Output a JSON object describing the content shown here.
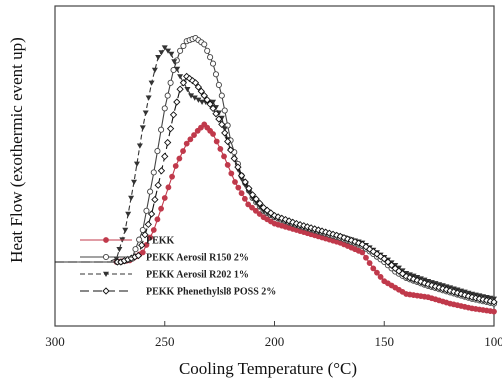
{
  "chart_data": {
    "type": "line",
    "xlabel": "Cooling Temperature (°C)",
    "ylabel": "Heat Flow (exothermic event up)",
    "xlim": [
      300,
      100
    ],
    "x_reversed": true,
    "x_ticks": [
      300,
      250,
      200,
      150,
      100
    ],
    "x_tick_labels": [
      "300",
      "250",
      "200",
      "150",
      "100"
    ],
    "y_ticks_shown": false,
    "grid": false,
    "legend_position": "bottom-left",
    "series": [
      {
        "name": "PEKK",
        "color": "#c0394b",
        "marker": "filled-circle",
        "line": "solid",
        "points": [
          [
            300,
            0.2
          ],
          [
            280,
            0.2
          ],
          [
            272,
            0.2
          ],
          [
            266,
            0.205
          ],
          [
            260,
            0.23
          ],
          [
            255,
            0.3
          ],
          [
            250,
            0.4
          ],
          [
            245,
            0.5
          ],
          [
            240,
            0.57
          ],
          [
            235,
            0.61
          ],
          [
            232,
            0.63
          ],
          [
            228,
            0.6
          ],
          [
            223,
            0.53
          ],
          [
            218,
            0.45
          ],
          [
            212,
            0.38
          ],
          [
            205,
            0.34
          ],
          [
            200,
            0.32
          ],
          [
            190,
            0.3
          ],
          [
            180,
            0.28
          ],
          [
            170,
            0.26
          ],
          [
            160,
            0.23
          ],
          [
            155,
            0.18
          ],
          [
            150,
            0.14
          ],
          [
            145,
            0.12
          ],
          [
            140,
            0.1
          ],
          [
            130,
            0.09
          ],
          [
            120,
            0.07
          ],
          [
            110,
            0.055
          ],
          [
            100,
            0.045
          ]
        ]
      },
      {
        "name": "PEKK Aerosil R150 2%",
        "color": "#444444",
        "marker": "open-circle",
        "line": "solid",
        "points": [
          [
            300,
            0.2
          ],
          [
            280,
            0.2
          ],
          [
            270,
            0.2
          ],
          [
            265,
            0.21
          ],
          [
            260,
            0.3
          ],
          [
            255,
            0.48
          ],
          [
            250,
            0.68
          ],
          [
            246,
            0.8
          ],
          [
            243,
            0.86
          ],
          [
            240,
            0.89
          ],
          [
            236,
            0.9
          ],
          [
            232,
            0.88
          ],
          [
            228,
            0.82
          ],
          [
            224,
            0.72
          ],
          [
            220,
            0.58
          ],
          [
            215,
            0.47
          ],
          [
            210,
            0.4
          ],
          [
            205,
            0.36
          ],
          [
            200,
            0.34
          ],
          [
            190,
            0.315
          ],
          [
            180,
            0.295
          ],
          [
            170,
            0.275
          ],
          [
            160,
            0.25
          ],
          [
            150,
            0.2
          ],
          [
            145,
            0.17
          ],
          [
            140,
            0.15
          ],
          [
            130,
            0.125
          ],
          [
            120,
            0.105
          ],
          [
            110,
            0.085
          ],
          [
            100,
            0.07
          ]
        ]
      },
      {
        "name": "PEKK Aerosil R202 1%",
        "color": "#333333",
        "marker": "filled-triangle-down",
        "line": "dashed",
        "points": [
          [
            300,
            0.2
          ],
          [
            276,
            0.2
          ],
          [
            272,
            0.21
          ],
          [
            268,
            0.3
          ],
          [
            264,
            0.45
          ],
          [
            260,
            0.62
          ],
          [
            256,
            0.76
          ],
          [
            253,
            0.84
          ],
          [
            250,
            0.87
          ],
          [
            247,
            0.85
          ],
          [
            243,
            0.78
          ],
          [
            238,
            0.72
          ],
          [
            233,
            0.7
          ],
          [
            228,
            0.7
          ],
          [
            224,
            0.65
          ],
          [
            220,
            0.55
          ],
          [
            215,
            0.46
          ],
          [
            210,
            0.4
          ],
          [
            205,
            0.36
          ],
          [
            200,
            0.34
          ],
          [
            190,
            0.315
          ],
          [
            180,
            0.295
          ],
          [
            170,
            0.28
          ],
          [
            160,
            0.26
          ],
          [
            150,
            0.215
          ],
          [
            145,
            0.19
          ],
          [
            140,
            0.165
          ],
          [
            130,
            0.14
          ],
          [
            120,
            0.12
          ],
          [
            110,
            0.1
          ],
          [
            100,
            0.085
          ]
        ]
      },
      {
        "name": "PEKK Phenethylsl8 POSS 2%",
        "color": "#111111",
        "marker": "open-diamond",
        "line": "long-dash",
        "points": [
          [
            300,
            0.2
          ],
          [
            270,
            0.2
          ],
          [
            262,
            0.22
          ],
          [
            256,
            0.35
          ],
          [
            250,
            0.53
          ],
          [
            246,
            0.66
          ],
          [
            243,
            0.74
          ],
          [
            240,
            0.78
          ],
          [
            236,
            0.76
          ],
          [
            232,
            0.72
          ],
          [
            228,
            0.68
          ],
          [
            224,
            0.63
          ],
          [
            220,
            0.55
          ],
          [
            215,
            0.47
          ],
          [
            210,
            0.41
          ],
          [
            205,
            0.37
          ],
          [
            200,
            0.345
          ],
          [
            190,
            0.32
          ],
          [
            180,
            0.3
          ],
          [
            170,
            0.28
          ],
          [
            160,
            0.255
          ],
          [
            150,
            0.21
          ],
          [
            145,
            0.18
          ],
          [
            140,
            0.155
          ],
          [
            130,
            0.13
          ],
          [
            120,
            0.11
          ],
          [
            110,
            0.09
          ],
          [
            100,
            0.075
          ]
        ]
      }
    ]
  }
}
